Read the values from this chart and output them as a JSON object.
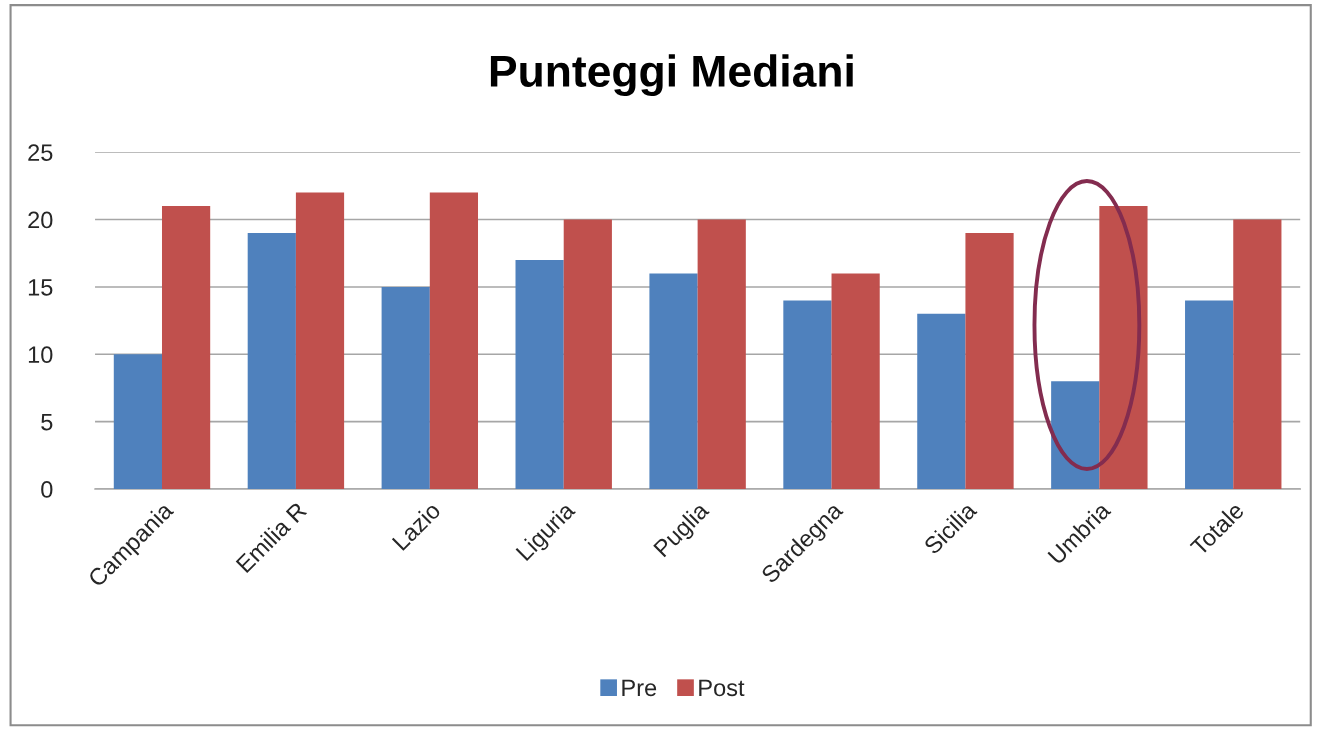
{
  "chart_data": {
    "type": "bar",
    "title": "Punteggi Mediani",
    "categories": [
      "Campania",
      "Emilia R",
      "Lazio",
      "Liguria",
      "Puglia",
      "Sardegna",
      "Sicilia",
      "Umbria",
      "Totale"
    ],
    "series": [
      {
        "name": "Pre",
        "color": "#4f81bd",
        "values": [
          10,
          19,
          15,
          17,
          16,
          14,
          13,
          8,
          14
        ]
      },
      {
        "name": "Post",
        "color": "#c0504d",
        "values": [
          21,
          22,
          22,
          20,
          20,
          16,
          19,
          21,
          20
        ]
      }
    ],
    "ylim": [
      0,
      25
    ],
    "yticks": [
      0,
      5,
      10,
      15,
      20,
      25
    ],
    "grid": "y",
    "legend": "bottom"
  }
}
